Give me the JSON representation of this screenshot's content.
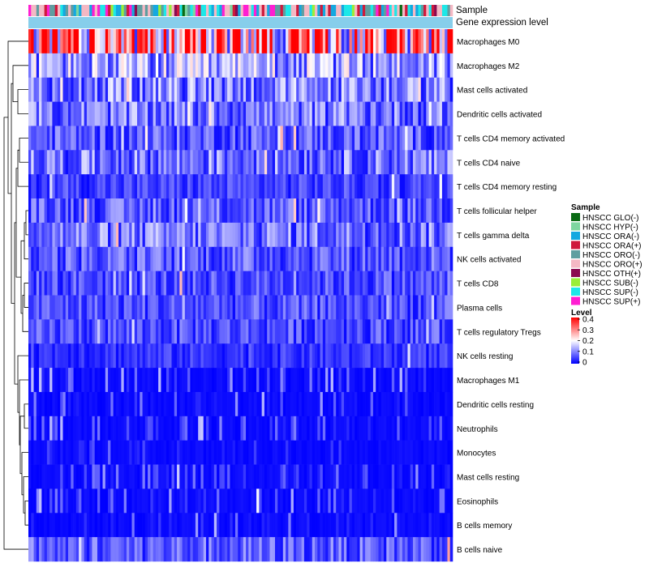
{
  "chart_data": {
    "type": "heatmap",
    "row_labels": [
      "Macrophages M0",
      "Macrophages M2",
      "Mast cells activated",
      "Dendritic cells activated",
      "T cells CD4 memory activated",
      "T cells CD4 naive",
      "T cells CD4 memory resting",
      "T cells follicular helper",
      "T cells gamma delta",
      "NK cells activated",
      "T cells CD8",
      "Plasma cells",
      "T cells regulatory  Tregs",
      "NK cells resting",
      "Macrophages M1",
      "Dendritic cells resting",
      "Neutrophils",
      "Monocytes",
      "Mast cells resting",
      "Eosinophils",
      "B cells memory",
      "B cells naive"
    ],
    "row_typical_levels": [
      0.28,
      0.12,
      0.1,
      0.09,
      0.07,
      0.09,
      0.05,
      0.07,
      0.09,
      0.07,
      0.06,
      0.06,
      0.06,
      0.04,
      0.03,
      0.02,
      0.02,
      0.015,
      0.02,
      0.02,
      0.01,
      0.07
    ],
    "column_count": 160,
    "column_annotations": {
      "sample_label": "Sample",
      "level_label": "Gene expression level"
    },
    "sample_legend": {
      "title": "Sample",
      "items": [
        {
          "label": "HNSCC GLO(-)",
          "color": "#0a6b14"
        },
        {
          "label": "HNSCC HYP(-)",
          "color": "#7ed6a0"
        },
        {
          "label": "HNSCC ORA(-)",
          "color": "#14a8e0"
        },
        {
          "label": "HNSCC ORA(+)",
          "color": "#cf1a3c"
        },
        {
          "label": "HNSCC ORO(-)",
          "color": "#5f9ea0"
        },
        {
          "label": "HNSCC ORO(+)",
          "color": "#f4b8c4"
        },
        {
          "label": "HNSCC OTH(+)",
          "color": "#8b0a50"
        },
        {
          "label": "HNSCC SUB(-)",
          "color": "#9aee38"
        },
        {
          "label": "HNSCC SUP(-)",
          "color": "#1de8e8"
        },
        {
          "label": "HNSCC SUP(+)",
          "color": "#ff1ed2"
        }
      ]
    },
    "level_legend": {
      "title": "Level",
      "range": [
        0,
        0.4
      ],
      "ticks": [
        "0.4",
        "0.3",
        "0.2",
        "0.1",
        "0"
      ],
      "color_low": "#0000ff",
      "color_mid": "#ffffff",
      "color_high": "#ff0000",
      "mid_value": 0.2
    },
    "dendrogram": "hierarchical clustering of rows (left side)"
  }
}
